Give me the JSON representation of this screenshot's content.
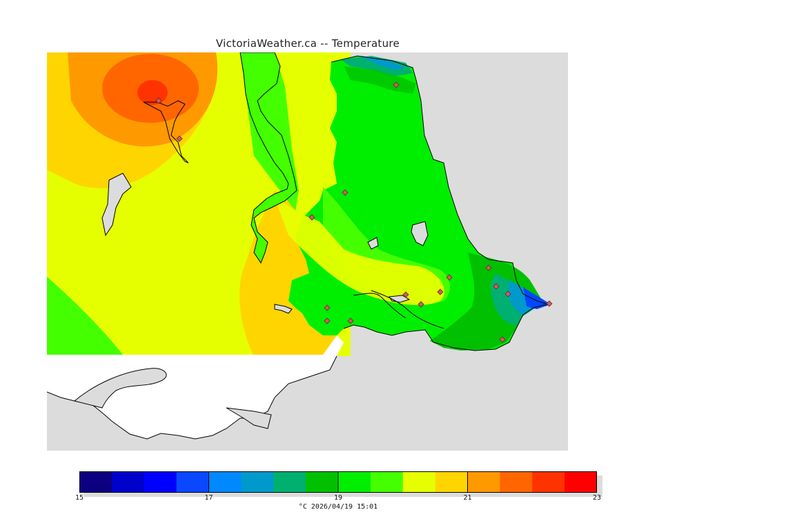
{
  "title": "VictoriaWeather.ca -- Temperature",
  "legend": {
    "min": 15,
    "max": 23,
    "tick_labels": [
      "15",
      "17",
      "19",
      "21",
      "23"
    ],
    "colors": [
      "#0c0080",
      "#0000cc",
      "#0000ff",
      "#0a48ff",
      "#0088ff",
      "#0099cc",
      "#00b070",
      "#00c000",
      "#00ee00",
      "#44ff00",
      "#e6ff00",
      "#ffd500",
      "#ff9900",
      "#ff6600",
      "#ff3300",
      "#ff0000"
    ],
    "unit": "°C",
    "timestamp": "2026/04/19 15:01",
    "caption": "°C  2026/04/19 15:01"
  },
  "map": {
    "land_outside_area": "#ffffff",
    "water": "#dcdcdc",
    "station_marker": "diamond",
    "station_color": "#d65a5a"
  }
}
